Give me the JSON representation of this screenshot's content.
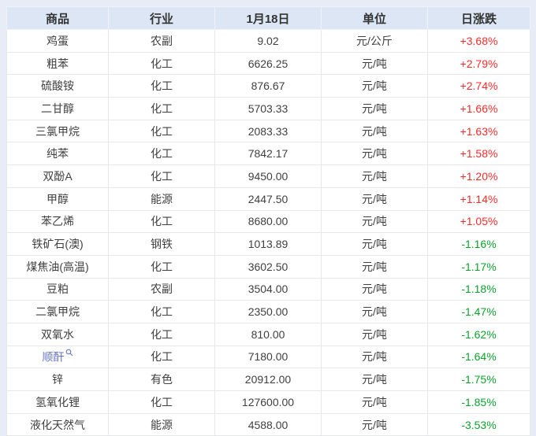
{
  "colors": {
    "up": "#fb2b2b",
    "down": "#0ca32c",
    "link": "#6574c4",
    "header_bg": "#dce6f4",
    "page_bg": "#e7ecf7"
  },
  "icons": {
    "magnifier": "search-icon"
  },
  "chart_data": {
    "type": "table",
    "columns": [
      "商品",
      "行业",
      "1月18日",
      "单位",
      "日涨跌"
    ],
    "rows": [
      {
        "commodity": "鸡蛋",
        "industry": "农副",
        "value": "9.02",
        "unit": "元/公斤",
        "change": "+3.68%",
        "direction": "up",
        "has_search_link": false
      },
      {
        "commodity": "粗苯",
        "industry": "化工",
        "value": "6626.25",
        "unit": "元/吨",
        "change": "+2.79%",
        "direction": "up",
        "has_search_link": false
      },
      {
        "commodity": "硫酸铵",
        "industry": "化工",
        "value": "876.67",
        "unit": "元/吨",
        "change": "+2.74%",
        "direction": "up",
        "has_search_link": false
      },
      {
        "commodity": "二甘醇",
        "industry": "化工",
        "value": "5703.33",
        "unit": "元/吨",
        "change": "+1.66%",
        "direction": "up",
        "has_search_link": false
      },
      {
        "commodity": "三氯甲烷",
        "industry": "化工",
        "value": "2083.33",
        "unit": "元/吨",
        "change": "+1.63%",
        "direction": "up",
        "has_search_link": false
      },
      {
        "commodity": "纯苯",
        "industry": "化工",
        "value": "7842.17",
        "unit": "元/吨",
        "change": "+1.58%",
        "direction": "up",
        "has_search_link": false
      },
      {
        "commodity": "双酚A",
        "industry": "化工",
        "value": "9450.00",
        "unit": "元/吨",
        "change": "+1.20%",
        "direction": "up",
        "has_search_link": false
      },
      {
        "commodity": "甲醇",
        "industry": "能源",
        "value": "2447.50",
        "unit": "元/吨",
        "change": "+1.14%",
        "direction": "up",
        "has_search_link": false
      },
      {
        "commodity": "苯乙烯",
        "industry": "化工",
        "value": "8680.00",
        "unit": "元/吨",
        "change": "+1.05%",
        "direction": "up",
        "has_search_link": false
      },
      {
        "commodity": "铁矿石(澳)",
        "industry": "钢铁",
        "value": "1013.89",
        "unit": "元/吨",
        "change": "-1.16%",
        "direction": "down",
        "has_search_link": false
      },
      {
        "commodity": "煤焦油(高温)",
        "industry": "化工",
        "value": "3602.50",
        "unit": "元/吨",
        "change": "-1.17%",
        "direction": "down",
        "has_search_link": false
      },
      {
        "commodity": "豆粕",
        "industry": "农副",
        "value": "3504.00",
        "unit": "元/吨",
        "change": "-1.18%",
        "direction": "down",
        "has_search_link": false
      },
      {
        "commodity": "二氯甲烷",
        "industry": "化工",
        "value": "2350.00",
        "unit": "元/吨",
        "change": "-1.47%",
        "direction": "down",
        "has_search_link": false
      },
      {
        "commodity": "双氧水",
        "industry": "化工",
        "value": "810.00",
        "unit": "元/吨",
        "change": "-1.62%",
        "direction": "down",
        "has_search_link": false
      },
      {
        "commodity": "顺酐",
        "industry": "化工",
        "value": "7180.00",
        "unit": "元/吨",
        "change": "-1.64%",
        "direction": "down",
        "has_search_link": true
      },
      {
        "commodity": "锌",
        "industry": "有色",
        "value": "20912.00",
        "unit": "元/吨",
        "change": "-1.75%",
        "direction": "down",
        "has_search_link": false
      },
      {
        "commodity": "氢氧化锂",
        "industry": "化工",
        "value": "127600.00",
        "unit": "元/吨",
        "change": "-1.85%",
        "direction": "down",
        "has_search_link": false
      },
      {
        "commodity": "液化天然气",
        "industry": "能源",
        "value": "4588.00",
        "unit": "元/吨",
        "change": "-3.53%",
        "direction": "down",
        "has_search_link": false
      }
    ]
  }
}
